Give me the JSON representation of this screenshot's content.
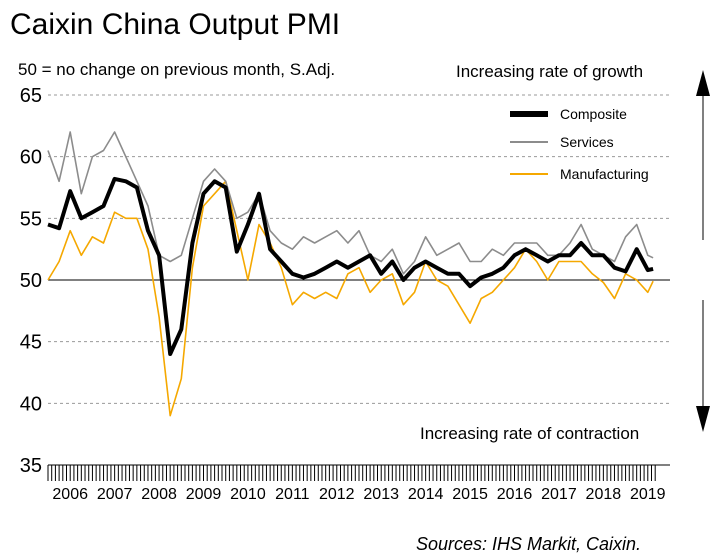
{
  "chart_data": {
    "type": "line",
    "title": "Caixin China Output PMI",
    "subtitle": "50 = no change on previous month, S.Adj.",
    "annotations": {
      "up": "Increasing rate of growth",
      "down": "Increasing rate of contraction"
    },
    "source": "Sources: IHS Markit, Caixin.",
    "ylim": [
      35,
      65
    ],
    "y_ticks": [
      "35",
      "40",
      "45",
      "50",
      "55",
      "60",
      "65"
    ],
    "x_tick_labels": [
      "2006",
      "2007",
      "2008",
      "2009",
      "2010",
      "2011",
      "2012",
      "2013",
      "2014",
      "2015",
      "2016",
      "2017",
      "2018",
      "2019"
    ],
    "x_start_year": 2006,
    "grid": true,
    "legend_position": "top-right",
    "reference_line": 50,
    "series": [
      {
        "name": "Composite",
        "color": "#000000",
        "points": [
          [
            2006.0,
            54.5
          ],
          [
            2006.25,
            54.2
          ],
          [
            2006.5,
            57.2
          ],
          [
            2006.75,
            55.0
          ],
          [
            2007.0,
            55.5
          ],
          [
            2007.25,
            56.0
          ],
          [
            2007.5,
            58.2
          ],
          [
            2007.75,
            58.0
          ],
          [
            2008.0,
            57.5
          ],
          [
            2008.25,
            54.0
          ],
          [
            2008.5,
            52.0
          ],
          [
            2008.75,
            44.0
          ],
          [
            2009.0,
            46.0
          ],
          [
            2009.25,
            53.0
          ],
          [
            2009.5,
            57.0
          ],
          [
            2009.75,
            58.0
          ],
          [
            2010.0,
            57.5
          ],
          [
            2010.25,
            52.3
          ],
          [
            2010.5,
            54.5
          ],
          [
            2010.75,
            57.0
          ],
          [
            2011.0,
            52.5
          ],
          [
            2011.25,
            51.5
          ],
          [
            2011.5,
            50.5
          ],
          [
            2011.75,
            50.2
          ],
          [
            2012.0,
            50.5
          ],
          [
            2012.25,
            51.0
          ],
          [
            2012.5,
            51.5
          ],
          [
            2012.75,
            51.0
          ],
          [
            2013.0,
            51.5
          ],
          [
            2013.25,
            52.0
          ],
          [
            2013.5,
            50.5
          ],
          [
            2013.75,
            51.5
          ],
          [
            2014.0,
            50.0
          ],
          [
            2014.25,
            51.0
          ],
          [
            2014.5,
            51.5
          ],
          [
            2014.75,
            51.0
          ],
          [
            2015.0,
            50.5
          ],
          [
            2015.25,
            50.5
          ],
          [
            2015.5,
            49.5
          ],
          [
            2015.75,
            50.2
          ],
          [
            2016.0,
            50.5
          ],
          [
            2016.25,
            51.0
          ],
          [
            2016.5,
            52.0
          ],
          [
            2016.75,
            52.5
          ],
          [
            2017.0,
            52.0
          ],
          [
            2017.25,
            51.5
          ],
          [
            2017.5,
            52.0
          ],
          [
            2017.75,
            52.0
          ],
          [
            2018.0,
            53.0
          ],
          [
            2018.25,
            52.0
          ],
          [
            2018.5,
            52.0
          ],
          [
            2018.75,
            51.0
          ],
          [
            2019.0,
            50.7
          ],
          [
            2019.25,
            52.5
          ],
          [
            2019.5,
            50.8
          ],
          [
            2019.62,
            50.9
          ]
        ]
      },
      {
        "name": "Services",
        "color": "#8c8c8c",
        "points": [
          [
            2006.0,
            60.5
          ],
          [
            2006.25,
            58.0
          ],
          [
            2006.5,
            62.0
          ],
          [
            2006.75,
            57.0
          ],
          [
            2007.0,
            60.0
          ],
          [
            2007.25,
            60.5
          ],
          [
            2007.5,
            62.0
          ],
          [
            2007.75,
            60.0
          ],
          [
            2008.0,
            58.0
          ],
          [
            2008.25,
            56.0
          ],
          [
            2008.5,
            52.0
          ],
          [
            2008.75,
            51.5
          ],
          [
            2009.0,
            52.0
          ],
          [
            2009.25,
            55.0
          ],
          [
            2009.5,
            58.0
          ],
          [
            2009.75,
            59.0
          ],
          [
            2010.0,
            58.0
          ],
          [
            2010.25,
            55.0
          ],
          [
            2010.5,
            55.5
          ],
          [
            2010.75,
            57.0
          ],
          [
            2011.0,
            54.0
          ],
          [
            2011.25,
            53.0
          ],
          [
            2011.5,
            52.5
          ],
          [
            2011.75,
            53.5
          ],
          [
            2012.0,
            53.0
          ],
          [
            2012.25,
            53.5
          ],
          [
            2012.5,
            54.0
          ],
          [
            2012.75,
            53.0
          ],
          [
            2013.0,
            54.0
          ],
          [
            2013.25,
            52.0
          ],
          [
            2013.5,
            51.5
          ],
          [
            2013.75,
            52.5
          ],
          [
            2014.0,
            50.5
          ],
          [
            2014.25,
            51.5
          ],
          [
            2014.5,
            53.5
          ],
          [
            2014.75,
            52.0
          ],
          [
            2015.0,
            52.5
          ],
          [
            2015.25,
            53.0
          ],
          [
            2015.5,
            51.5
          ],
          [
            2015.75,
            51.5
          ],
          [
            2016.0,
            52.5
          ],
          [
            2016.25,
            52.0
          ],
          [
            2016.5,
            53.0
          ],
          [
            2016.75,
            53.0
          ],
          [
            2017.0,
            53.0
          ],
          [
            2017.25,
            52.0
          ],
          [
            2017.5,
            52.0
          ],
          [
            2017.75,
            53.0
          ],
          [
            2018.0,
            54.5
          ],
          [
            2018.25,
            52.5
          ],
          [
            2018.5,
            52.0
          ],
          [
            2018.75,
            51.5
          ],
          [
            2019.0,
            53.5
          ],
          [
            2019.25,
            54.5
          ],
          [
            2019.5,
            52.0
          ],
          [
            2019.62,
            51.8
          ]
        ]
      },
      {
        "name": "Manufacturing",
        "color": "#f5a800",
        "points": [
          [
            2006.0,
            50.0
          ],
          [
            2006.25,
            51.5
          ],
          [
            2006.5,
            54.0
          ],
          [
            2006.75,
            52.0
          ],
          [
            2007.0,
            53.5
          ],
          [
            2007.25,
            53.0
          ],
          [
            2007.5,
            55.5
          ],
          [
            2007.75,
            55.0
          ],
          [
            2008.0,
            55.0
          ],
          [
            2008.25,
            52.5
          ],
          [
            2008.5,
            47.0
          ],
          [
            2008.75,
            39.0
          ],
          [
            2009.0,
            42.0
          ],
          [
            2009.25,
            51.0
          ],
          [
            2009.5,
            56.0
          ],
          [
            2009.75,
            57.0
          ],
          [
            2010.0,
            58.0
          ],
          [
            2010.25,
            54.0
          ],
          [
            2010.5,
            50.0
          ],
          [
            2010.75,
            54.5
          ],
          [
            2011.0,
            53.0
          ],
          [
            2011.25,
            51.0
          ],
          [
            2011.5,
            48.0
          ],
          [
            2011.75,
            49.0
          ],
          [
            2012.0,
            48.5
          ],
          [
            2012.25,
            49.0
          ],
          [
            2012.5,
            48.5
          ],
          [
            2012.75,
            50.5
          ],
          [
            2013.0,
            51.0
          ],
          [
            2013.25,
            49.0
          ],
          [
            2013.5,
            50.0
          ],
          [
            2013.75,
            50.5
          ],
          [
            2014.0,
            48.0
          ],
          [
            2014.25,
            49.0
          ],
          [
            2014.5,
            51.5
          ],
          [
            2014.75,
            50.0
          ],
          [
            2015.0,
            49.5
          ],
          [
            2015.25,
            48.0
          ],
          [
            2015.5,
            46.5
          ],
          [
            2015.75,
            48.5
          ],
          [
            2016.0,
            49.0
          ],
          [
            2016.25,
            50.0
          ],
          [
            2016.5,
            51.0
          ],
          [
            2016.75,
            52.5
          ],
          [
            2017.0,
            51.5
          ],
          [
            2017.25,
            50.0
          ],
          [
            2017.5,
            51.5
          ],
          [
            2017.75,
            51.5
          ],
          [
            2018.0,
            51.5
          ],
          [
            2018.25,
            50.5
          ],
          [
            2018.5,
            49.8
          ],
          [
            2018.75,
            48.5
          ],
          [
            2019.0,
            50.5
          ],
          [
            2019.25,
            50.0
          ],
          [
            2019.5,
            49.0
          ],
          [
            2019.62,
            49.9
          ]
        ]
      }
    ]
  }
}
